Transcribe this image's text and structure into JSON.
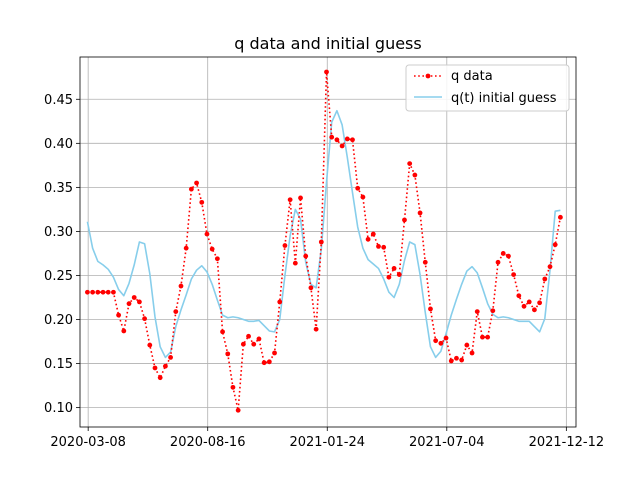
{
  "chart_data": {
    "type": "line",
    "title": "q data and initial guess",
    "xlabel": "",
    "ylabel": "",
    "x_axis_type": "date",
    "xlim": [
      "2020-02-26",
      "2021-12-25"
    ],
    "ylim": [
      0.078,
      0.498
    ],
    "x_ticks": [
      "2020-03-08",
      "2020-08-16",
      "2021-01-24",
      "2021-07-04",
      "2021-12-12"
    ],
    "y_ticks": [
      0.1,
      0.15,
      0.2,
      0.25,
      0.3,
      0.35,
      0.4,
      0.45
    ],
    "y_tick_labels": [
      "0.10",
      "0.15",
      "0.20",
      "0.25",
      "0.30",
      "0.35",
      "0.40",
      "0.45"
    ],
    "grid": true,
    "legend_position": "top-right",
    "series": [
      {
        "name": "q data",
        "color": "#ff0000",
        "style": "dotted-with-markers",
        "x": [
          "2020-03-07",
          "2020-03-14",
          "2020-03-21",
          "2020-03-28",
          "2020-04-04",
          "2020-04-11",
          "2020-04-18",
          "2020-04-25",
          "2020-05-02",
          "2020-05-09",
          "2020-05-16",
          "2020-05-23",
          "2020-05-30",
          "2020-06-06",
          "2020-06-13",
          "2020-06-20",
          "2020-06-27",
          "2020-07-04",
          "2020-07-11",
          "2020-07-18",
          "2020-07-25",
          "2020-08-01",
          "2020-08-08",
          "2020-08-15",
          "2020-08-22",
          "2020-08-29",
          "2020-09-05",
          "2020-09-12",
          "2020-09-19",
          "2020-09-26",
          "2020-10-03",
          "2020-10-10",
          "2020-10-17",
          "2020-10-24",
          "2020-10-31",
          "2020-11-07",
          "2020-11-14",
          "2020-11-21",
          "2020-11-28",
          "2020-12-05",
          "2020-12-12",
          "2020-12-19",
          "2020-12-26",
          "2021-01-02",
          "2021-01-09",
          "2021-01-16",
          "2021-01-23",
          "2021-01-30",
          "2021-02-06",
          "2021-02-13",
          "2021-02-20",
          "2021-02-27",
          "2021-03-06",
          "2021-03-13",
          "2021-03-20",
          "2021-03-27",
          "2021-04-03",
          "2021-04-10",
          "2021-04-17",
          "2021-04-24",
          "2021-05-01",
          "2021-05-08",
          "2021-05-15",
          "2021-05-22",
          "2021-05-29",
          "2021-06-05",
          "2021-06-12",
          "2021-06-19",
          "2021-06-26",
          "2021-07-03",
          "2021-07-10",
          "2021-07-17",
          "2021-07-24",
          "2021-07-31",
          "2021-08-07",
          "2021-08-14",
          "2021-08-21",
          "2021-08-28",
          "2021-09-04",
          "2021-09-11",
          "2021-09-18",
          "2021-09-25",
          "2021-10-02",
          "2021-10-09",
          "2021-10-16",
          "2021-10-23",
          "2021-10-30",
          "2021-11-06",
          "2021-11-13",
          "2021-11-20",
          "2021-11-27",
          "2021-12-04"
        ],
        "values": [
          0.231,
          0.231,
          0.231,
          0.231,
          0.231,
          0.231,
          0.205,
          0.187,
          0.218,
          0.225,
          0.22,
          0.201,
          0.171,
          0.145,
          0.134,
          0.147,
          0.157,
          0.209,
          0.238,
          0.281,
          0.348,
          0.355,
          0.333,
          0.297,
          0.28,
          0.269,
          0.186,
          0.161,
          0.123,
          0.097,
          0.172,
          0.181,
          0.172,
          0.178,
          0.151,
          0.152,
          0.162,
          0.22,
          0.284,
          0.336,
          0.264,
          0.338,
          0.272,
          0.236,
          0.189,
          0.288,
          0.481,
          0.407,
          0.404,
          0.397,
          0.405,
          0.404,
          0.349,
          0.339,
          0.291,
          0.297,
          0.283,
          0.282,
          0.248,
          0.258,
          0.251,
          0.313,
          0.377,
          0.364,
          0.321,
          0.265,
          0.212,
          0.176,
          0.173,
          0.179,
          0.153,
          0.156,
          0.154,
          0.171,
          0.162,
          0.209,
          0.18,
          0.18,
          0.21,
          0.265,
          0.275,
          0.272,
          0.251,
          0.227,
          0.215,
          0.22,
          0.211,
          0.219,
          0.246,
          0.26,
          0.285,
          0.316
        ]
      },
      {
        "name": "q(t) initial guess",
        "color": "#87ceeb",
        "style": "solid",
        "x": [
          "2020-03-07",
          "2020-03-14",
          "2020-03-21",
          "2020-03-28",
          "2020-04-04",
          "2020-04-11",
          "2020-04-18",
          "2020-04-25",
          "2020-05-02",
          "2020-05-09",
          "2020-05-16",
          "2020-05-23",
          "2020-05-30",
          "2020-06-06",
          "2020-06-13",
          "2020-06-20",
          "2020-06-27",
          "2020-07-04",
          "2020-07-11",
          "2020-07-18",
          "2020-07-25",
          "2020-08-01",
          "2020-08-08",
          "2020-08-15",
          "2020-08-22",
          "2020-08-29",
          "2020-09-05",
          "2020-09-12",
          "2020-09-19",
          "2020-09-26",
          "2020-10-03",
          "2020-10-10",
          "2020-10-17",
          "2020-10-24",
          "2020-10-31",
          "2020-11-07",
          "2020-11-14",
          "2020-11-21",
          "2020-11-28",
          "2020-12-05",
          "2020-12-12",
          "2020-12-19",
          "2020-12-26",
          "2021-01-02",
          "2021-01-09",
          "2021-01-16",
          "2021-01-23",
          "2021-01-30",
          "2021-02-06",
          "2021-02-13",
          "2021-02-20",
          "2021-02-27",
          "2021-03-06",
          "2021-03-13",
          "2021-03-20",
          "2021-03-27",
          "2021-04-03",
          "2021-04-10",
          "2021-04-17",
          "2021-04-24",
          "2021-05-01",
          "2021-05-08",
          "2021-05-15",
          "2021-05-22",
          "2021-05-29",
          "2021-06-05",
          "2021-06-12",
          "2021-06-19",
          "2021-06-26",
          "2021-07-03",
          "2021-07-10",
          "2021-07-17",
          "2021-07-24",
          "2021-07-31",
          "2021-08-07",
          "2021-08-14",
          "2021-08-21",
          "2021-08-28",
          "2021-09-04",
          "2021-09-11",
          "2021-09-18",
          "2021-09-25",
          "2021-10-02",
          "2021-10-09",
          "2021-10-16",
          "2021-10-23",
          "2021-10-30",
          "2021-11-06",
          "2021-11-13",
          "2021-11-20",
          "2021-11-27",
          "2021-12-04"
        ],
        "values": [
          0.311,
          0.281,
          0.266,
          0.262,
          0.257,
          0.248,
          0.234,
          0.227,
          0.241,
          0.262,
          0.288,
          0.286,
          0.252,
          0.203,
          0.169,
          0.157,
          0.163,
          0.192,
          0.211,
          0.228,
          0.246,
          0.256,
          0.261,
          0.254,
          0.24,
          0.222,
          0.205,
          0.202,
          0.203,
          0.202,
          0.2,
          0.198,
          0.198,
          0.199,
          0.193,
          0.187,
          0.186,
          0.2,
          0.25,
          0.295,
          0.325,
          0.314,
          0.265,
          0.24,
          0.236,
          0.28,
          0.356,
          0.424,
          0.437,
          0.421,
          0.384,
          0.344,
          0.305,
          0.281,
          0.268,
          0.263,
          0.258,
          0.246,
          0.231,
          0.225,
          0.24,
          0.267,
          0.288,
          0.285,
          0.251,
          0.208,
          0.169,
          0.157,
          0.164,
          0.184,
          0.205,
          0.223,
          0.24,
          0.255,
          0.26,
          0.253,
          0.236,
          0.218,
          0.206,
          0.202,
          0.203,
          0.202,
          0.2,
          0.198,
          0.198,
          0.198,
          0.192,
          0.186,
          0.201,
          0.256,
          0.323,
          0.324
        ]
      }
    ]
  }
}
